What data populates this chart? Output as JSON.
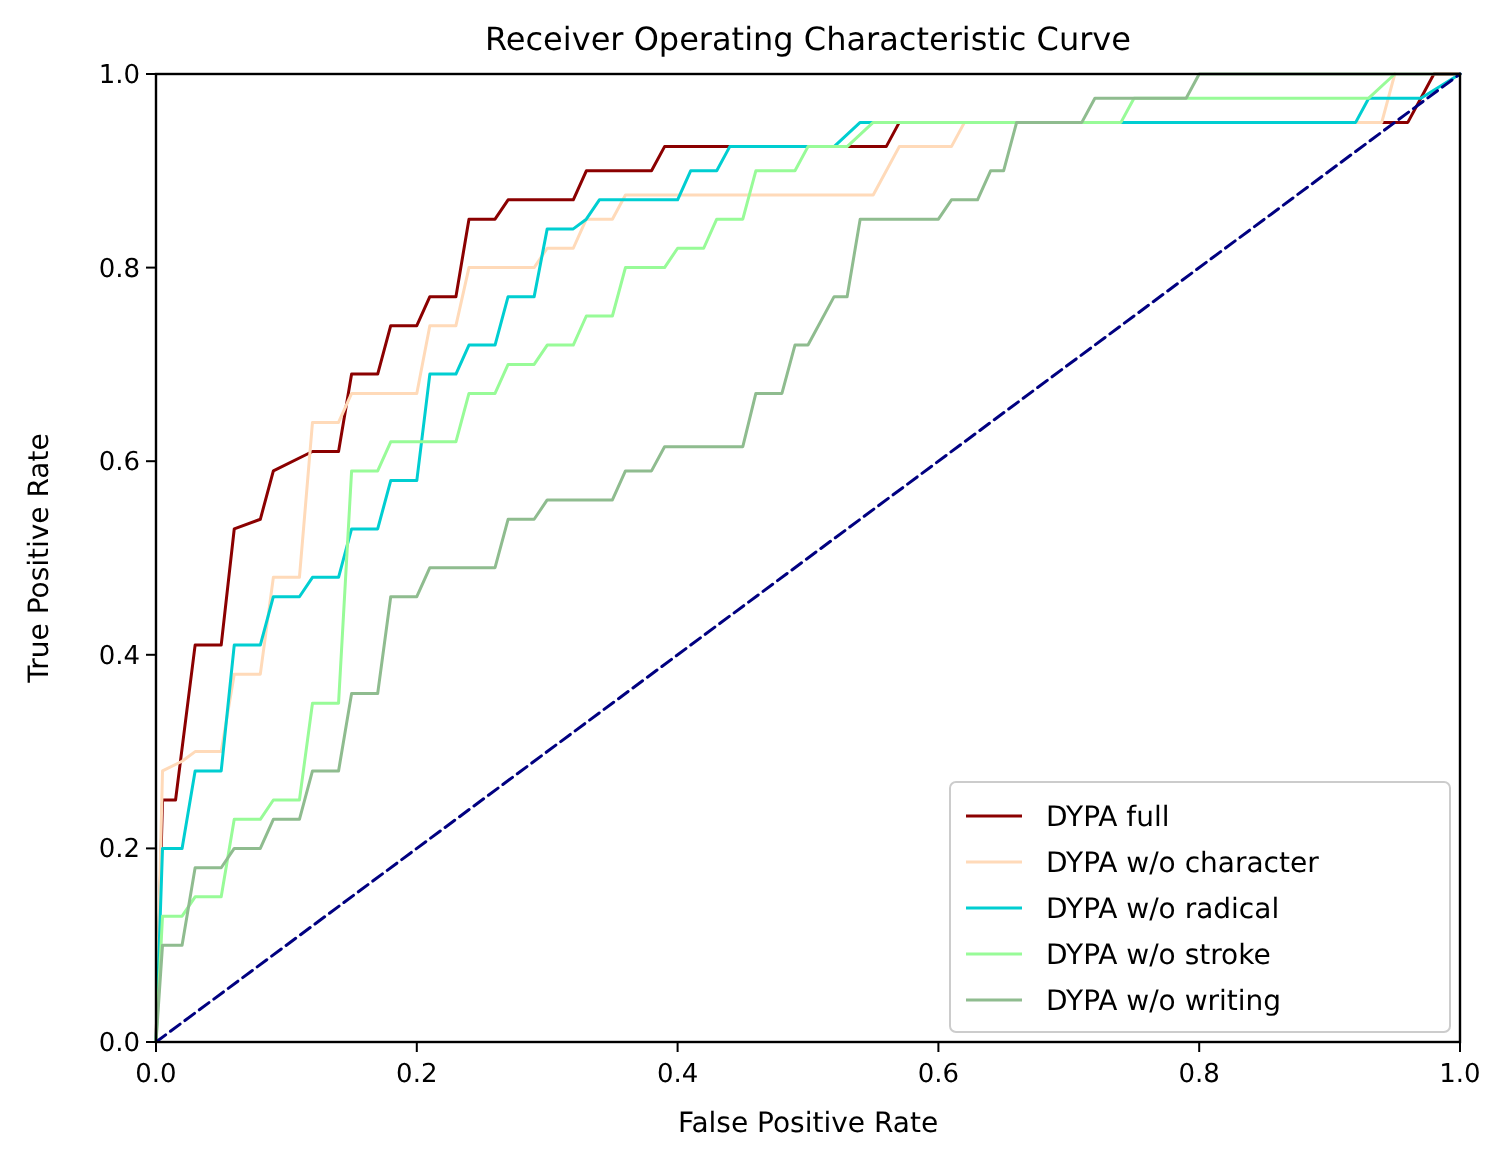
{
  "chart_data": {
    "type": "line",
    "title": "Receiver Operating Characteristic Curve",
    "xlabel": "False Positive Rate",
    "ylabel": "True Positive Rate",
    "xlim": [
      0,
      1
    ],
    "ylim": [
      0,
      1
    ],
    "xticks": [
      {
        "value": 0,
        "label": "0.0"
      },
      {
        "value": 0.2,
        "label": "0.2"
      },
      {
        "value": 0.4,
        "label": "0.4"
      },
      {
        "value": 0.6,
        "label": "0.6"
      },
      {
        "value": 0.8,
        "label": "0.8"
      },
      {
        "value": 1,
        "label": "1.0"
      }
    ],
    "yticks": [
      {
        "value": 0,
        "label": "0.0"
      },
      {
        "value": 0.2,
        "label": "0.2"
      },
      {
        "value": 0.4,
        "label": "0.4"
      },
      {
        "value": 0.6,
        "label": "0.6"
      },
      {
        "value": 0.8,
        "label": "0.8"
      },
      {
        "value": 1,
        "label": "1.0"
      }
    ],
    "grid": false,
    "legend": "bottom right",
    "marker": "none",
    "series": [
      {
        "name": "DYPA full",
        "color": "#8b0000",
        "x": [
          0,
          0.005,
          0.015,
          0.03,
          0.05,
          0.06,
          0.08,
          0.09,
          0.12,
          0.14,
          0.15,
          0.17,
          0.18,
          0.2,
          0.21,
          0.23,
          0.24,
          0.26,
          0.27,
          0.32,
          0.33,
          0.38,
          0.39,
          0.56,
          0.57,
          0.96,
          0.98,
          1
        ],
        "values": [
          0,
          0.25,
          0.25,
          0.41,
          0.41,
          0.53,
          0.54,
          0.59,
          0.61,
          0.61,
          0.69,
          0.69,
          0.74,
          0.74,
          0.77,
          0.77,
          0.85,
          0.85,
          0.87,
          0.87,
          0.9,
          0.9,
          0.925,
          0.925,
          0.95,
          0.95,
          1,
          1
        ]
      },
      {
        "name": "DYPA w/o character",
        "color": "#ffdab9",
        "x": [
          0,
          0.005,
          0.02,
          0.03,
          0.05,
          0.06,
          0.08,
          0.09,
          0.11,
          0.12,
          0.14,
          0.15,
          0.2,
          0.21,
          0.23,
          0.24,
          0.29,
          0.3,
          0.32,
          0.33,
          0.35,
          0.36,
          0.55,
          0.57,
          0.61,
          0.62,
          0.94,
          0.95
        ],
        "values": [
          0,
          0.28,
          0.29,
          0.3,
          0.3,
          0.38,
          0.38,
          0.48,
          0.48,
          0.64,
          0.64,
          0.67,
          0.67,
          0.74,
          0.74,
          0.8,
          0.8,
          0.82,
          0.82,
          0.85,
          0.85,
          0.875,
          0.875,
          0.925,
          0.925,
          0.95,
          0.95,
          1
        ]
      },
      {
        "name": "DYPA w/o radical",
        "color": "#00ced1",
        "x": [
          0,
          0.005,
          0.02,
          0.03,
          0.05,
          0.06,
          0.08,
          0.09,
          0.11,
          0.12,
          0.14,
          0.15,
          0.17,
          0.18,
          0.2,
          0.21,
          0.23,
          0.24,
          0.26,
          0.27,
          0.29,
          0.3,
          0.32,
          0.33,
          0.34,
          0.4,
          0.41,
          0.43,
          0.44,
          0.52,
          0.54,
          0.92,
          0.93,
          0.97,
          1
        ],
        "values": [
          0,
          0.2,
          0.2,
          0.28,
          0.28,
          0.41,
          0.41,
          0.46,
          0.46,
          0.48,
          0.48,
          0.53,
          0.53,
          0.58,
          0.58,
          0.69,
          0.69,
          0.72,
          0.72,
          0.77,
          0.77,
          0.84,
          0.84,
          0.85,
          0.87,
          0.87,
          0.9,
          0.9,
          0.925,
          0.925,
          0.95,
          0.95,
          0.975,
          0.975,
          1
        ]
      },
      {
        "name": "DYPA w/o stroke",
        "color": "#98fb98",
        "x": [
          0,
          0.005,
          0.02,
          0.03,
          0.05,
          0.06,
          0.08,
          0.09,
          0.11,
          0.12,
          0.14,
          0.15,
          0.17,
          0.18,
          0.23,
          0.24,
          0.26,
          0.27,
          0.29,
          0.3,
          0.32,
          0.33,
          0.35,
          0.36,
          0.39,
          0.4,
          0.42,
          0.43,
          0.45,
          0.46,
          0.49,
          0.5,
          0.53,
          0.55,
          0.74,
          0.75,
          0.93,
          0.95
        ],
        "values": [
          0,
          0.13,
          0.13,
          0.15,
          0.15,
          0.23,
          0.23,
          0.25,
          0.25,
          0.35,
          0.35,
          0.59,
          0.59,
          0.62,
          0.62,
          0.67,
          0.67,
          0.7,
          0.7,
          0.72,
          0.72,
          0.75,
          0.75,
          0.8,
          0.8,
          0.82,
          0.82,
          0.85,
          0.85,
          0.9,
          0.9,
          0.925,
          0.925,
          0.95,
          0.95,
          0.975,
          0.975,
          1
        ]
      },
      {
        "name": "DYPA w/o writing",
        "color": "#8fbc8f",
        "x": [
          0,
          0.005,
          0.02,
          0.03,
          0.05,
          0.06,
          0.08,
          0.09,
          0.11,
          0.12,
          0.14,
          0.15,
          0.17,
          0.18,
          0.2,
          0.21,
          0.26,
          0.27,
          0.29,
          0.3,
          0.35,
          0.36,
          0.38,
          0.39,
          0.45,
          0.46,
          0.48,
          0.49,
          0.5,
          0.52,
          0.53,
          0.54,
          0.6,
          0.61,
          0.63,
          0.64,
          0.65,
          0.66,
          0.71,
          0.72,
          0.79,
          0.8,
          1
        ],
        "values": [
          0,
          0.1,
          0.1,
          0.18,
          0.18,
          0.2,
          0.2,
          0.23,
          0.23,
          0.28,
          0.28,
          0.36,
          0.36,
          0.46,
          0.46,
          0.49,
          0.49,
          0.54,
          0.54,
          0.56,
          0.56,
          0.59,
          0.59,
          0.615,
          0.615,
          0.67,
          0.67,
          0.72,
          0.72,
          0.77,
          0.77,
          0.85,
          0.85,
          0.87,
          0.87,
          0.9,
          0.9,
          0.95,
          0.95,
          0.975,
          0.975,
          1,
          1
        ]
      },
      {
        "color": "#000080",
        "line_style": "dashed",
        "x": [
          0,
          1
        ],
        "values": [
          0,
          1
        ]
      }
    ]
  }
}
